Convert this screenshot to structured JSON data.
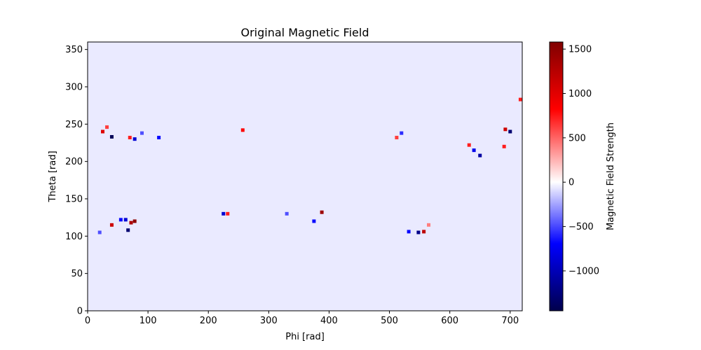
{
  "chart_data": {
    "type": "heatmap",
    "title": "Original Magnetic Field",
    "xlabel": "Phi [rad]",
    "ylabel": "Theta [rad]",
    "xlim": [
      0,
      720
    ],
    "ylim": [
      0,
      360
    ],
    "x_ticks": [
      0,
      100,
      200,
      300,
      400,
      500,
      600,
      700
    ],
    "y_ticks": [
      0,
      50,
      100,
      150,
      200,
      250,
      300,
      350
    ],
    "colormap": "seismic",
    "colorbar": {
      "label": "Magnetic Field Strength",
      "range": [
        -1450,
        1580
      ],
      "ticks": [
        -1000,
        -500,
        0,
        500,
        1000,
        1500
      ],
      "tick_labels": [
        "−1000",
        "−500",
        "0",
        "500",
        "1000",
        "1500"
      ]
    },
    "background_value": -60,
    "active_regions": [
      {
        "phi": 25,
        "theta": 240,
        "value": 1000
      },
      {
        "phi": 40,
        "theta": 233,
        "value": -1400
      },
      {
        "phi": 32,
        "theta": 246,
        "value": 600
      },
      {
        "phi": 78,
        "theta": 230,
        "value": -900
      },
      {
        "phi": 70,
        "theta": 232,
        "value": 700
      },
      {
        "phi": 118,
        "theta": 232,
        "value": -700
      },
      {
        "phi": 90,
        "theta": 238,
        "value": -500
      },
      {
        "phi": 257,
        "theta": 242,
        "value": 800
      },
      {
        "phi": 520,
        "theta": 238,
        "value": -600
      },
      {
        "phi": 512,
        "theta": 232,
        "value": 600
      },
      {
        "phi": 640,
        "theta": 215,
        "value": -800
      },
      {
        "phi": 650,
        "theta": 208,
        "value": -1100
      },
      {
        "phi": 632,
        "theta": 222,
        "value": 700
      },
      {
        "phi": 700,
        "theta": 240,
        "value": -1300
      },
      {
        "phi": 692,
        "theta": 243,
        "value": 1100
      },
      {
        "phi": 690,
        "theta": 220,
        "value": 700
      },
      {
        "phi": 717,
        "theta": 283,
        "value": 700
      },
      {
        "phi": 40,
        "theta": 115,
        "value": 1100
      },
      {
        "phi": 55,
        "theta": 122,
        "value": -700
      },
      {
        "phi": 67,
        "theta": 108,
        "value": -1300
      },
      {
        "phi": 72,
        "theta": 118,
        "value": 1300
      },
      {
        "phi": 78,
        "theta": 120,
        "value": 1500
      },
      {
        "phi": 63,
        "theta": 122,
        "value": -900
      },
      {
        "phi": 20,
        "theta": 105,
        "value": -500
      },
      {
        "phi": 225,
        "theta": 130,
        "value": -900
      },
      {
        "phi": 232,
        "theta": 130,
        "value": 700
      },
      {
        "phi": 388,
        "theta": 132,
        "value": 1400
      },
      {
        "phi": 375,
        "theta": 120,
        "value": -700
      },
      {
        "phi": 330,
        "theta": 130,
        "value": -500
      },
      {
        "phi": 548,
        "theta": 105,
        "value": -1200
      },
      {
        "phi": 557,
        "theta": 106,
        "value": 1200
      },
      {
        "phi": 532,
        "theta": 106,
        "value": -700
      },
      {
        "phi": 565,
        "theta": 115,
        "value": 400
      }
    ]
  }
}
